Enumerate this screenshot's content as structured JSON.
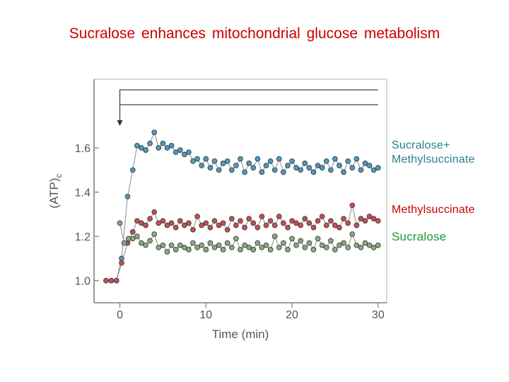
{
  "slide": {
    "title": "Sucralose enhances mitochondrial glucose metabolism"
  },
  "chart_data": {
    "type": "scatter",
    "title": "",
    "xlabel": "Time (min)",
    "ylabel": "(ATP)c",
    "xlim": [
      -3.0,
      31.0
    ],
    "ylim": [
      0.9,
      1.91
    ],
    "x_ticks": [
      0,
      10,
      20,
      30
    ],
    "y_ticks": [
      1.0,
      1.2,
      1.4,
      1.6
    ],
    "x_tick_labels": [
      "0",
      "10",
      "20",
      "30"
    ],
    "y_tick_labels": [
      "1.0",
      "1.2",
      "1.4",
      "1.6"
    ],
    "grid": false,
    "legend_position": "right",
    "series": [
      {
        "name": "Sucralose+\nMethylsuccinate",
        "color": "#2a7f8f",
        "marker_color": "#4a9bc4",
        "line_color": "#8c8c8c",
        "x": [
          -1.6,
          -1.0,
          -0.4,
          0.2,
          0.9,
          1.5,
          2.0,
          2.5,
          3.0,
          3.5,
          4.0,
          4.5,
          5.0,
          5.5,
          6.0,
          6.5,
          7.0,
          7.5,
          8.0,
          8.5,
          9.0,
          9.5,
          10.0,
          10.5,
          11.0,
          11.5,
          12.0,
          12.5,
          13.0,
          13.5,
          14.0,
          14.5,
          15.0,
          15.5,
          16.0,
          16.5,
          17.0,
          17.5,
          18.0,
          18.5,
          19.0,
          19.5,
          20.0,
          20.5,
          21.0,
          21.5,
          22.0,
          22.5,
          23.0,
          23.5,
          24.0,
          24.5,
          25.0,
          25.5,
          26.0,
          26.5,
          27.0,
          27.5,
          28.0,
          28.5,
          29.0,
          29.5,
          30.0
        ],
        "y": [
          1.0,
          1.0,
          1.0,
          1.1,
          1.38,
          1.5,
          1.61,
          1.6,
          1.59,
          1.62,
          1.67,
          1.6,
          1.62,
          1.6,
          1.61,
          1.58,
          1.59,
          1.57,
          1.58,
          1.54,
          1.55,
          1.52,
          1.55,
          1.51,
          1.54,
          1.5,
          1.53,
          1.54,
          1.5,
          1.52,
          1.55,
          1.49,
          1.53,
          1.51,
          1.55,
          1.49,
          1.52,
          1.54,
          1.5,
          1.55,
          1.49,
          1.52,
          1.54,
          1.51,
          1.5,
          1.53,
          1.51,
          1.49,
          1.52,
          1.51,
          1.54,
          1.5,
          1.55,
          1.52,
          1.49,
          1.54,
          1.51,
          1.55,
          1.5,
          1.53,
          1.52,
          1.5,
          1.51
        ]
      },
      {
        "name": "Methylsuccinate",
        "color": "#cc0000",
        "marker_color": "#c94c55",
        "line_color": "#8c8c8c",
        "x": [
          -1.6,
          -1.0,
          -0.4,
          0.2,
          0.9,
          1.5,
          2.0,
          2.5,
          3.0,
          3.5,
          4.0,
          4.5,
          5.0,
          5.5,
          6.0,
          6.5,
          7.0,
          7.5,
          8.0,
          8.5,
          9.0,
          9.5,
          10.0,
          10.5,
          11.0,
          11.5,
          12.0,
          12.5,
          13.0,
          13.5,
          14.0,
          14.5,
          15.0,
          15.5,
          16.0,
          16.5,
          17.0,
          17.5,
          18.0,
          18.5,
          19.0,
          19.5,
          20.0,
          20.5,
          21.0,
          21.5,
          22.0,
          22.5,
          23.0,
          23.5,
          24.0,
          24.5,
          25.0,
          25.5,
          26.0,
          26.5,
          27.0,
          27.5,
          28.0,
          28.5,
          29.0,
          29.5,
          30.0
        ],
        "y": [
          1.0,
          1.0,
          1.0,
          1.08,
          1.17,
          1.22,
          1.27,
          1.26,
          1.25,
          1.28,
          1.31,
          1.26,
          1.27,
          1.25,
          1.26,
          1.24,
          1.27,
          1.25,
          1.26,
          1.23,
          1.29,
          1.25,
          1.26,
          1.24,
          1.27,
          1.25,
          1.26,
          1.23,
          1.28,
          1.25,
          1.27,
          1.24,
          1.28,
          1.26,
          1.24,
          1.29,
          1.25,
          1.27,
          1.25,
          1.29,
          1.26,
          1.24,
          1.27,
          1.26,
          1.25,
          1.28,
          1.26,
          1.24,
          1.27,
          1.29,
          1.25,
          1.27,
          1.25,
          1.24,
          1.28,
          1.26,
          1.34,
          1.25,
          1.28,
          1.27,
          1.29,
          1.28,
          1.27
        ]
      },
      {
        "name": "Sucralose",
        "color": "#1a9e3a",
        "marker_color": "#8aaa80",
        "line_color": "#8c8c8c",
        "x": [
          0.0,
          0.5,
          1.0,
          1.5,
          2.0,
          2.5,
          3.0,
          3.5,
          4.0,
          4.5,
          5.0,
          5.5,
          6.0,
          6.5,
          7.0,
          7.5,
          8.0,
          8.5,
          9.0,
          9.5,
          10.0,
          10.5,
          11.0,
          11.5,
          12.0,
          12.5,
          13.0,
          13.5,
          14.0,
          14.5,
          15.0,
          15.5,
          16.0,
          16.5,
          17.0,
          17.5,
          18.0,
          18.5,
          19.0,
          19.5,
          20.0,
          20.5,
          21.0,
          21.5,
          22.0,
          22.5,
          23.0,
          23.5,
          24.0,
          24.5,
          25.0,
          25.5,
          26.0,
          26.5,
          27.0,
          27.5,
          28.0,
          28.5,
          29.0,
          29.5,
          30.0
        ],
        "y": [
          1.26,
          1.17,
          1.19,
          1.19,
          1.2,
          1.17,
          1.16,
          1.18,
          1.21,
          1.15,
          1.16,
          1.13,
          1.16,
          1.14,
          1.16,
          1.15,
          1.14,
          1.17,
          1.15,
          1.16,
          1.14,
          1.17,
          1.15,
          1.16,
          1.14,
          1.17,
          1.15,
          1.19,
          1.14,
          1.16,
          1.15,
          1.14,
          1.17,
          1.15,
          1.16,
          1.14,
          1.2,
          1.15,
          1.17,
          1.14,
          1.19,
          1.16,
          1.18,
          1.15,
          1.17,
          1.14,
          1.19,
          1.16,
          1.15,
          1.18,
          1.14,
          1.16,
          1.17,
          1.15,
          1.21,
          1.16,
          1.15,
          1.17,
          1.16,
          1.15,
          1.16
        ]
      }
    ],
    "annotations": [
      {
        "type": "stimulus-bracket",
        "arrow_x": 0,
        "bar_end_x": 30
      }
    ]
  }
}
